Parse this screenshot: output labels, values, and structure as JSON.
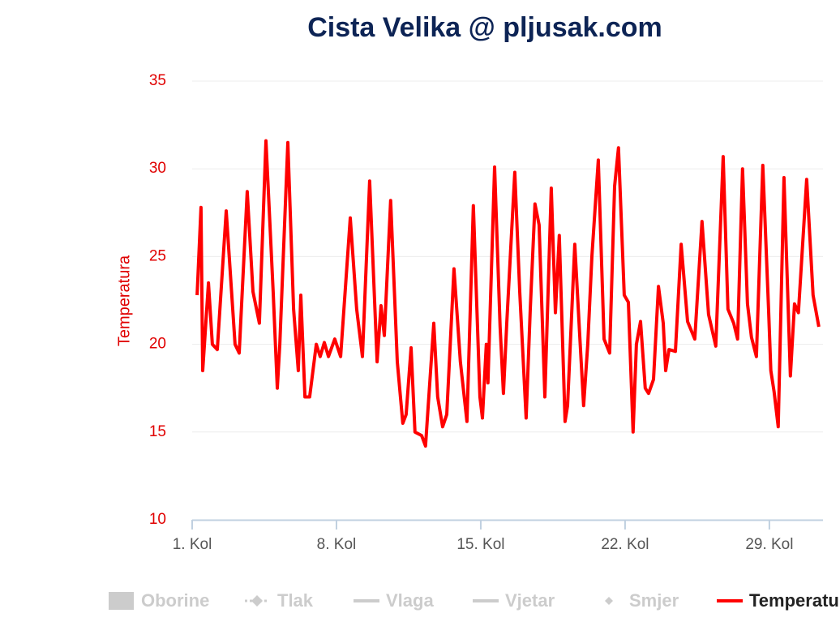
{
  "chart_data": {
    "type": "line",
    "title": "Cista Velika @ pljusak.com",
    "y_label": "Temperatura",
    "grid": true,
    "xlim": [
      1,
      31.6
    ],
    "xticks": [
      {
        "value": 1,
        "label": "1. Kol"
      },
      {
        "value": 8,
        "label": "8. Kol"
      },
      {
        "value": 15,
        "label": "15. Kol"
      },
      {
        "value": 22,
        "label": "22. Kol"
      },
      {
        "value": 29,
        "label": "29. Kol"
      }
    ],
    "ylim": [
      10,
      35
    ],
    "yticks": [
      10,
      15,
      20,
      25,
      30,
      35
    ],
    "x": [
      1.24,
      1.43,
      1.51,
      1.79,
      1.98,
      2.22,
      2.65,
      3.08,
      3.28,
      3.67,
      3.95,
      4.26,
      4.58,
      4.93,
      5.13,
      5.25,
      5.64,
      5.92,
      6.15,
      6.27,
      6.47,
      6.7,
      7.02,
      7.21,
      7.41,
      7.61,
      7.92,
      8.2,
      8.67,
      8.98,
      9.26,
      9.61,
      9.97,
      10.16,
      10.32,
      10.63,
      10.95,
      11.22,
      11.38,
      11.62,
      11.81,
      12.13,
      12.32,
      12.72,
      12.91,
      13.15,
      13.35,
      13.7,
      14.01,
      14.33,
      14.64,
      14.96,
      15.08,
      15.27,
      15.35,
      15.67,
      15.94,
      16.1,
      16.26,
      16.65,
      16.89,
      17.2,
      17.4,
      17.63,
      17.83,
      18.11,
      18.42,
      18.62,
      18.81,
      19.09,
      19.21,
      19.56,
      19.8,
      19.99,
      20.19,
      20.39,
      20.7,
      20.98,
      21.25,
      21.49,
      21.68,
      21.96,
      22.16,
      22.39,
      22.55,
      22.75,
      22.98,
      23.14,
      23.38,
      23.62,
      23.85,
      23.97,
      24.13,
      24.44,
      24.72,
      25.03,
      25.38,
      25.73,
      26.05,
      26.4,
      26.76,
      26.99,
      27.27,
      27.46,
      27.7,
      27.94,
      28.13,
      28.37,
      28.68,
      28.96,
      29.07,
      29.23,
      29.43,
      29.71,
      30.02,
      30.22,
      30.41,
      30.81,
      31.12,
      31.4
    ],
    "series": [
      {
        "name": "Temperatura",
        "color": "#ff0000",
        "values": [
          22.8,
          27.8,
          18.5,
          23.5,
          20,
          19.7,
          27.6,
          20,
          19.5,
          28.7,
          23,
          21.2,
          31.6,
          23,
          17.5,
          20,
          31.5,
          22,
          18.5,
          22.8,
          17,
          17,
          20,
          19.3,
          20.1,
          19.3,
          20.3,
          19.3,
          27.2,
          22,
          19.3,
          29.3,
          19,
          22.2,
          20.5,
          28.2,
          19,
          15.5,
          16,
          19.8,
          15,
          14.8,
          14.2,
          21.2,
          17,
          15.3,
          16,
          24.3,
          19,
          15.6,
          27.9,
          17,
          15.8,
          20,
          17.8,
          30.1,
          21,
          17.2,
          21.2,
          29.8,
          23,
          15.8,
          22,
          28,
          26.8,
          17,
          28.9,
          21.8,
          26.2,
          15.6,
          16.5,
          25.7,
          20.5,
          16.5,
          20,
          25,
          30.5,
          20.3,
          19.5,
          29,
          31.2,
          22.8,
          22.4,
          15,
          20,
          21.3,
          17.5,
          17.2,
          18,
          23.3,
          21.2,
          18.5,
          19.7,
          19.6,
          25.7,
          21.3,
          20.3,
          27,
          21.7,
          19.9,
          30.7,
          22,
          21.2,
          20.3,
          30,
          22.3,
          20.4,
          19.3,
          30.2,
          22,
          18.5,
          17.3,
          15.3,
          29.5,
          18.2,
          22.3,
          21.8,
          29.4,
          22.8,
          21
        ]
      }
    ],
    "legend": [
      {
        "name": "Oborine",
        "symbol": "rect",
        "visible": false
      },
      {
        "name": "Tlak",
        "symbol": "dash-diamond",
        "visible": false
      },
      {
        "name": "Vlaga",
        "symbol": "line",
        "visible": false
      },
      {
        "name": "Vjetar",
        "symbol": "line",
        "visible": false
      },
      {
        "name": "Smjer",
        "symbol": "diamond",
        "visible": false
      },
      {
        "name": "Temperatura",
        "symbol": "line",
        "visible": true,
        "color": "#ff0000"
      }
    ]
  }
}
